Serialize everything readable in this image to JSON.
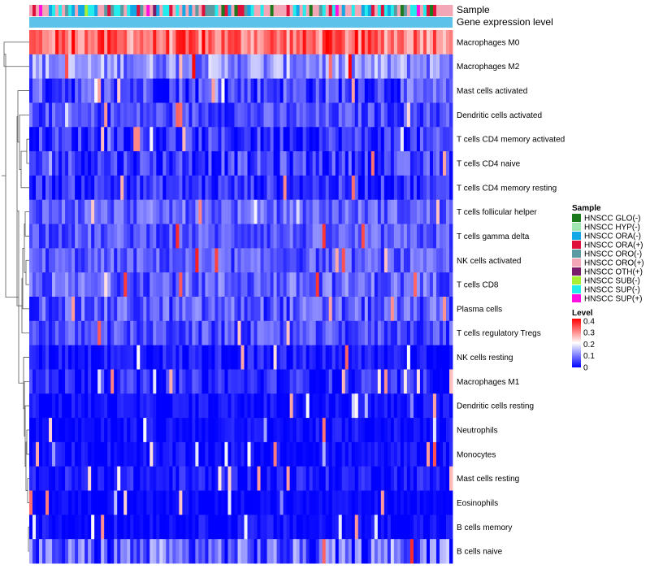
{
  "chart_data": {
    "type": "heatmap",
    "annotation_labels": {
      "sample": "Sample",
      "expression": "Gene expression level"
    },
    "rows": [
      {
        "label": "Macrophages M0",
        "mean": 0.33,
        "spread": 0.08
      },
      {
        "label": "Macrophages M2",
        "mean": 0.12,
        "spread": 0.07
      },
      {
        "label": "Mast cells activated",
        "mean": 0.06,
        "spread": 0.07
      },
      {
        "label": "Dendritic cells activated",
        "mean": 0.06,
        "spread": 0.05
      },
      {
        "label": "T cells CD4 memory activated",
        "mean": 0.04,
        "spread": 0.06
      },
      {
        "label": "T cells CD4 naive",
        "mean": 0.05,
        "spread": 0.06
      },
      {
        "label": "T cells CD4 memory resting",
        "mean": 0.04,
        "spread": 0.05
      },
      {
        "label": "T cells follicular helper",
        "mean": 0.08,
        "spread": 0.05
      },
      {
        "label": "T cells gamma delta",
        "mean": 0.07,
        "spread": 0.05
      },
      {
        "label": "NK cells activated",
        "mean": 0.07,
        "spread": 0.05
      },
      {
        "label": "T cells CD8",
        "mean": 0.08,
        "spread": 0.06
      },
      {
        "label": "Plasma cells",
        "mean": 0.07,
        "spread": 0.06
      },
      {
        "label": "T cells regulatory  Tregs",
        "mean": 0.06,
        "spread": 0.05
      },
      {
        "label": "NK cells resting",
        "mean": 0.02,
        "spread": 0.04
      },
      {
        "label": "Macrophages M1",
        "mean": 0.03,
        "spread": 0.05
      },
      {
        "label": "Dendritic cells resting",
        "mean": 0.01,
        "spread": 0.03
      },
      {
        "label": "Neutrophils",
        "mean": 0.01,
        "spread": 0.03
      },
      {
        "label": "Monocytes",
        "mean": 0.01,
        "spread": 0.03
      },
      {
        "label": "Mast cells resting",
        "mean": 0.02,
        "spread": 0.04
      },
      {
        "label": "Eosinophils",
        "mean": 0.005,
        "spread": 0.02
      },
      {
        "label": "B cells memory",
        "mean": 0.01,
        "spread": 0.03
      },
      {
        "label": "B cells naive",
        "mean": 0.07,
        "spread": 0.09
      }
    ],
    "n_samples": 130,
    "sample_legend": {
      "title": "Sample",
      "items": [
        {
          "label": "HNSCC GLO(-)",
          "color": "#1b7a1b"
        },
        {
          "label": "HNSCC HYP(-)",
          "color": "#9fe6b0"
        },
        {
          "label": "HNSCC ORA(-)",
          "color": "#12a8e6"
        },
        {
          "label": "HNSCC ORA(+)",
          "color": "#e0103c"
        },
        {
          "label": "HNSCC ORO(-)",
          "color": "#5a9aa0"
        },
        {
          "label": "HNSCC ORO(+)",
          "color": "#f2a6b6"
        },
        {
          "label": "HNSCC OTH(+)",
          "color": "#7a1a6a"
        },
        {
          "label": "HNSCC SUB(-)",
          "color": "#a6ef36"
        },
        {
          "label": "HNSCC SUP(-)",
          "color": "#22ecec"
        },
        {
          "label": "HNSCC SUP(+)",
          "color": "#ff10e0"
        }
      ]
    },
    "level_legend": {
      "title": "Level",
      "ticks": [
        "0.4",
        "0.3",
        "0.2",
        "0.1",
        "0"
      ],
      "min": 0,
      "max": 0.42
    },
    "expression_bar_color": "#5cc2ea",
    "color_scale": [
      "#0000ff",
      "#ffffff",
      "#ff0000"
    ]
  }
}
